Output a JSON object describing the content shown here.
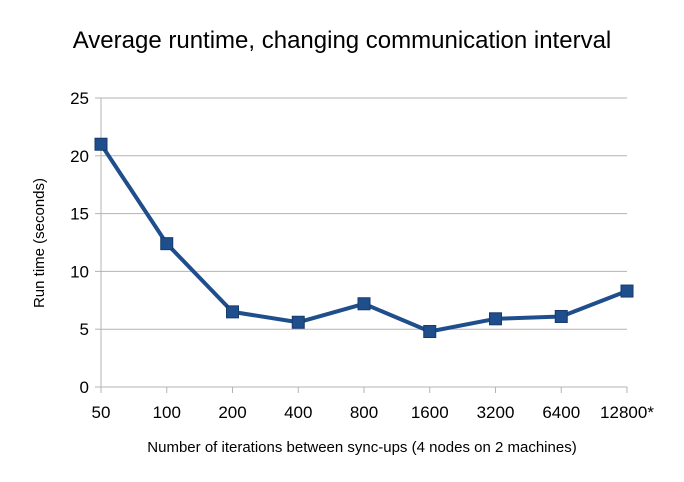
{
  "chart_data": {
    "type": "line",
    "title": "Average runtime, changing communication interval",
    "xlabel": "Number of iterations between sync-ups (4 nodes on 2 machines)",
    "ylabel": "Run time (seconds)",
    "categories": [
      "50",
      "100",
      "200",
      "400",
      "800",
      "1600",
      "3200",
      "6400",
      "12800*"
    ],
    "series": [
      {
        "values": [
          21.0,
          12.4,
          6.5,
          5.6,
          7.2,
          4.8,
          5.9,
          6.1,
          8.3
        ],
        "color": "#1f4e8c"
      }
    ],
    "ylim": [
      0,
      25
    ],
    "yticks": [
      "0",
      "5",
      "10",
      "15",
      "20",
      "25"
    ],
    "grid": "horizontal",
    "legend": "none"
  }
}
